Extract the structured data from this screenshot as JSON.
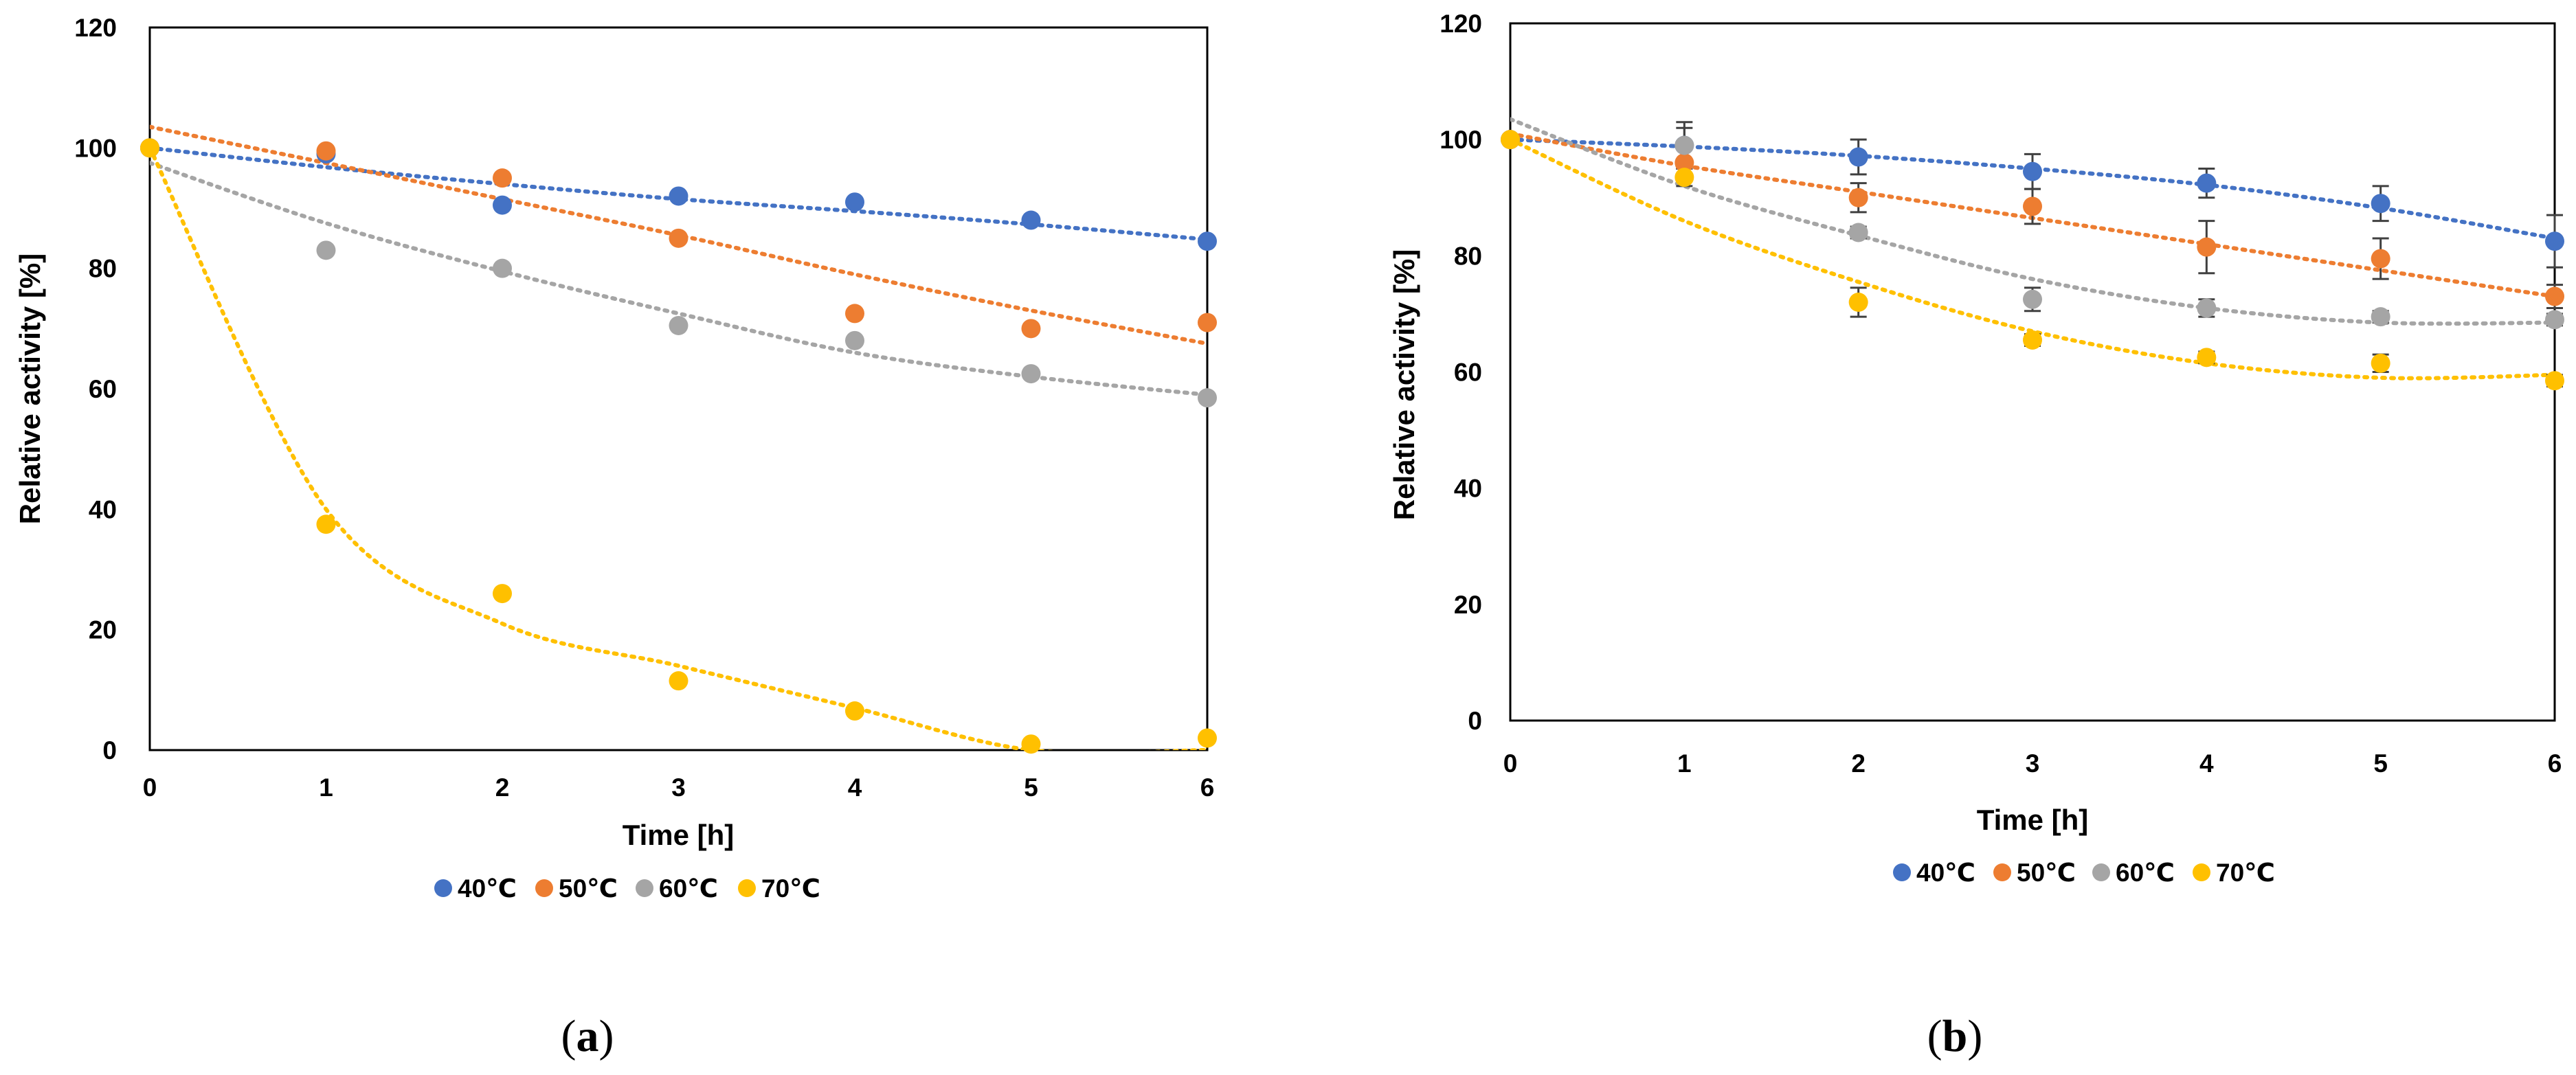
{
  "chart_data": [
    {
      "type": "scatter",
      "panel": "a",
      "caption": "(a)",
      "caption_parts": [
        "(",
        "a",
        ")"
      ],
      "xlabel": "Time [h]",
      "ylabel": "Relative activity [%]",
      "xlim": [
        0,
        6
      ],
      "ylim": [
        0,
        120
      ],
      "xticks": [
        "0",
        "1",
        "2",
        "3",
        "4",
        "5",
        "6"
      ],
      "yticks": [
        "0",
        "20",
        "40",
        "60",
        "80",
        "100",
        "120"
      ],
      "legend_position": "bottom",
      "grid": false,
      "trendlines": "dotted polynomial",
      "series": [
        {
          "name": "40℃",
          "color": "#4472C4",
          "x": [
            0,
            1,
            2,
            3,
            4,
            5,
            6
          ],
          "values": [
            100,
            99,
            90.5,
            92,
            91,
            88,
            84.5
          ],
          "trend": [
            100,
            96.8,
            94,
            91.5,
            89.5,
            87.3,
            84.8
          ]
        },
        {
          "name": "50℃",
          "color": "#ED7D31",
          "x": [
            0,
            1,
            2,
            3,
            4,
            5,
            6
          ],
          "values": [
            100,
            99.5,
            95,
            85,
            72.5,
            70,
            71
          ],
          "trend": [
            103.5,
            97.5,
            91.5,
            85.5,
            79,
            73,
            67.5
          ]
        },
        {
          "name": "60℃",
          "color": "#A5A5A5",
          "x": [
            0,
            1,
            2,
            3,
            4,
            5,
            6
          ],
          "values": [
            100,
            83,
            80,
            70.5,
            68,
            62.5,
            58.5
          ],
          "trend": [
            97.5,
            87.5,
            79.5,
            72.5,
            66,
            62,
            59
          ]
        },
        {
          "name": "70℃",
          "color": "#FFC000",
          "x": [
            0,
            1,
            2,
            3,
            4,
            5,
            6
          ],
          "values": [
            100,
            37.5,
            26,
            11.5,
            6.5,
            1,
            2
          ],
          "trend": [
            100,
            40,
            21,
            14,
            7,
            0,
            0
          ]
        }
      ]
    },
    {
      "type": "scatter",
      "panel": "b",
      "caption": "(b)",
      "caption_parts": [
        "(",
        "b",
        ")"
      ],
      "xlabel": "Time [h]",
      "ylabel": "Relative activity [%]",
      "xlim": [
        0,
        6
      ],
      "ylim": [
        0,
        120
      ],
      "xticks": [
        "0",
        "1",
        "2",
        "3",
        "4",
        "5",
        "6"
      ],
      "yticks": [
        "0",
        "20",
        "40",
        "60",
        "80",
        "100",
        "120"
      ],
      "legend_position": "bottom",
      "grid": false,
      "trendlines": "dotted polynomial",
      "error_bars": true,
      "series": [
        {
          "name": "40℃",
          "color": "#4472C4",
          "x": [
            0,
            1,
            2,
            3,
            4,
            5,
            6
          ],
          "values": [
            100,
            99,
            97,
            94.5,
            92.5,
            89,
            82.5
          ],
          "errors": [
            0,
            4,
            3,
            3,
            2.5,
            3,
            4.5
          ],
          "trend": [
            100,
            98.8,
            97.2,
            95,
            92.2,
            88.2,
            83
          ]
        },
        {
          "name": "50℃",
          "color": "#ED7D31",
          "x": [
            0,
            1,
            2,
            3,
            4,
            5,
            6
          ],
          "values": [
            100,
            96,
            90,
            88.5,
            81.5,
            79.5,
            73
          ],
          "errors": [
            0,
            2.5,
            2.5,
            3,
            4.5,
            3.5,
            2
          ],
          "trend": [
            101,
            95.5,
            91,
            86.5,
            82,
            77.5,
            73
          ]
        },
        {
          "name": "60℃",
          "color": "#A5A5A5",
          "x": [
            0,
            1,
            2,
            3,
            4,
            5,
            6
          ],
          "values": [
            100,
            99,
            84,
            72.5,
            71,
            69.5,
            69
          ],
          "errors": [
            0,
            3,
            1,
            2,
            1.5,
            1,
            1
          ],
          "trend": [
            103.5,
            92,
            83.5,
            76,
            71,
            68.5,
            68.5
          ]
        },
        {
          "name": "70℃",
          "color": "#FFC000",
          "x": [
            0,
            1,
            2,
            3,
            4,
            5,
            6
          ],
          "values": [
            100,
            93.5,
            72,
            65.5,
            62.5,
            61.5,
            58.5
          ],
          "errors": [
            0,
            1.5,
            2.5,
            1,
            1,
            1.5,
            1
          ],
          "trend": [
            100,
            86,
            75.5,
            67,
            61.5,
            59,
            59.5
          ]
        }
      ]
    }
  ]
}
